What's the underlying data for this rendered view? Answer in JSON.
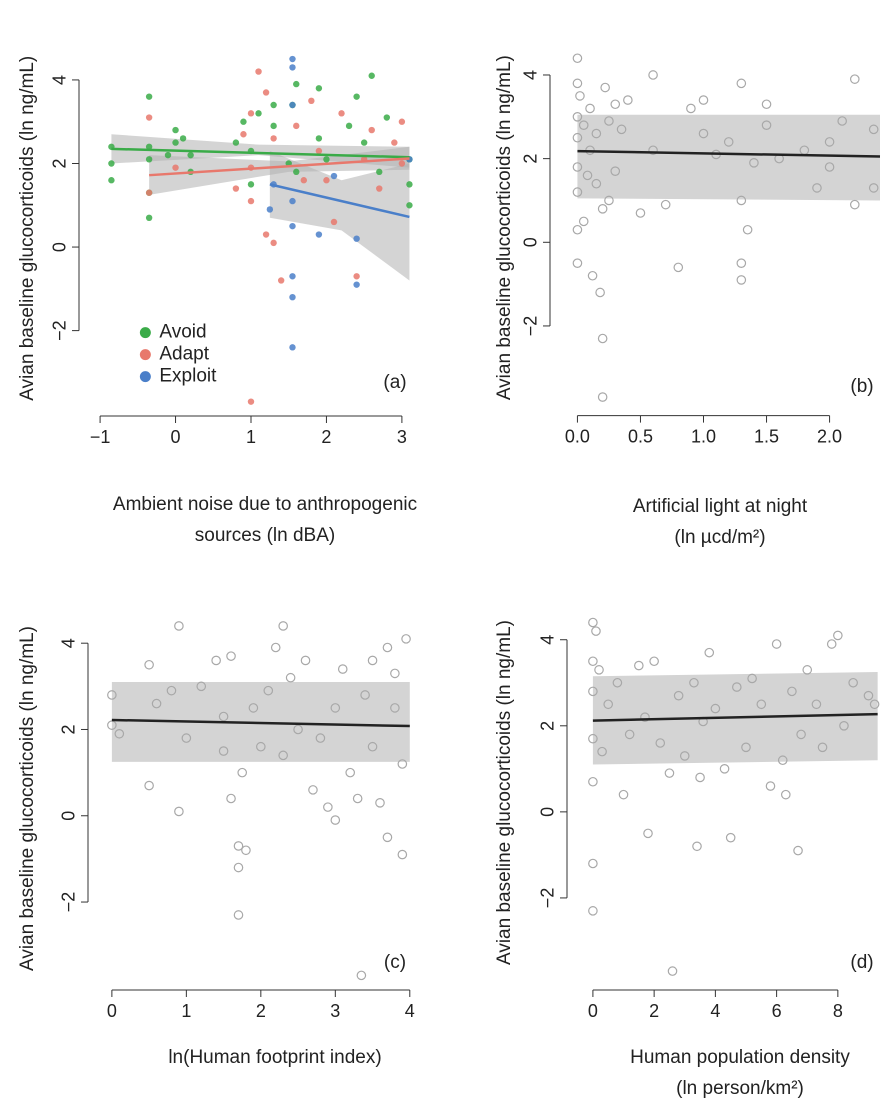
{
  "chart_data": [
    {
      "type": "scatter",
      "panel_label": "(a)",
      "ylabel": "Avian baseline glucocorticoids (ln ng/mL)",
      "xlabel": [
        "Ambient noise due to anthropogenic",
        "sources (ln dBA)"
      ],
      "xlim": [
        -1.2,
        3.24
      ],
      "ylim": [
        -3.9,
        4.8
      ],
      "xticks": [
        {
          "value": -1,
          "label": "−1"
        },
        0,
        1,
        2,
        3
      ],
      "yticks": [
        {
          "value": -2,
          "label": "−2"
        },
        0,
        2,
        4
      ],
      "legend": "bottom-left",
      "marker": "filled",
      "band_color": "#b0b0b0",
      "series": [
        {
          "name": "Avoid",
          "color": "#3aab48",
          "x": [
            -0.85,
            -0.85,
            -0.85,
            -0.35,
            -0.35,
            -0.35,
            -0.35,
            -0.35,
            -0.1,
            0,
            0,
            0.1,
            0.2,
            0.2,
            0.8,
            0.9,
            1,
            1,
            1.1,
            1.3,
            1.3,
            1.5,
            1.55,
            1.6,
            1.6,
            1.9,
            1.9,
            2.0,
            2.3,
            2.4,
            2.5,
            2.6,
            2.7,
            2.8,
            3.1,
            3.1,
            3.1
          ],
          "values": [
            1.6,
            2.0,
            2.4,
            3.6,
            2.4,
            2.1,
            1.3,
            0.7,
            2.2,
            2.5,
            2.8,
            2.6,
            2.2,
            1.8,
            2.5,
            3.0,
            2.3,
            1.5,
            3.2,
            3.4,
            2.9,
            2.0,
            3.4,
            3.9,
            1.8,
            2.6,
            3.8,
            2.1,
            2.9,
            3.6,
            2.5,
            4.1,
            1.8,
            3.1,
            2.1,
            1.5,
            1.0
          ],
          "fit": {
            "x": [
              -0.85,
              3.1
            ],
            "values": [
              2.35,
              2.15
            ]
          },
          "band": {
            "x": [
              -0.85,
              1.1,
              3.1
            ],
            "upper": [
              2.7,
              2.45,
              2.4
            ],
            "lower": [
              2.0,
              2.2,
              1.9
            ]
          }
        },
        {
          "name": "Adapt",
          "color": "#e8786c",
          "x": [
            -0.35,
            -0.35,
            0,
            0.8,
            0.9,
            1.0,
            1.0,
            1.0,
            1.1,
            1.2,
            1.2,
            1.3,
            1.3,
            1.4,
            1.6,
            1.7,
            1.8,
            1.9,
            2.0,
            2.1,
            2.2,
            2.4,
            2.5,
            2.6,
            2.7,
            2.9,
            3.0,
            3.0,
            1.0
          ],
          "values": [
            3.1,
            1.3,
            1.9,
            1.4,
            2.7,
            3.2,
            1.9,
            1.1,
            4.2,
            3.7,
            0.3,
            2.6,
            0.1,
            -0.8,
            2.9,
            1.6,
            3.5,
            2.3,
            1.6,
            0.6,
            3.2,
            -0.7,
            2.1,
            2.8,
            1.4,
            2.5,
            3.0,
            2.0,
            -3.7
          ],
          "fit": {
            "x": [
              -0.35,
              3.1
            ],
            "values": [
              1.72,
              2.12
            ]
          },
          "band": {
            "x": [
              -0.35,
              1.5,
              3.1
            ],
            "upper": [
              2.2,
              2.05,
              2.4
            ],
            "lower": [
              1.25,
              1.8,
              1.85
            ]
          }
        },
        {
          "name": "Exploit",
          "color": "#4a7fc9",
          "x": [
            1.25,
            1.3,
            1.55,
            1.55,
            1.55,
            1.55,
            1.55,
            1.55,
            1.55,
            1.55,
            1.9,
            2.1,
            2.4,
            2.4,
            3.1
          ],
          "values": [
            0.9,
            1.5,
            4.5,
            4.3,
            3.4,
            -0.7,
            -1.2,
            -2.4,
            1.1,
            0.5,
            0.3,
            1.7,
            -0.9,
            0.2,
            2.1
          ],
          "fit": {
            "x": [
              1.25,
              3.1
            ],
            "values": [
              1.5,
              0.72
            ]
          },
          "band": {
            "x": [
              1.25,
              2.2,
              3.1
            ],
            "upper": [
              2.3,
              1.6,
              2.0
            ],
            "lower": [
              0.7,
              0.4,
              -0.8
            ]
          }
        }
      ]
    },
    {
      "type": "scatter",
      "panel_label": "(b)",
      "ylabel": "Avian baseline glucocorticoids (ln ng/mL)",
      "xlabel": [
        "Artificial light at night",
        "(ln µcd/m²)"
      ],
      "xlim": [
        -0.17,
        2.4
      ],
      "ylim": [
        -4.0,
        4.7
      ],
      "xticks": [
        {
          "value": 0,
          "label": "0.0"
        },
        0.5,
        {
          "value": 1,
          "label": "1.0"
        },
        1.5,
        {
          "value": 2,
          "label": "2.0"
        }
      ],
      "yticks": [
        {
          "value": -2,
          "label": "−2"
        },
        0,
        2,
        4
      ],
      "marker": "open",
      "band_color": "#d4d4d4",
      "series": [
        {
          "color": "#a8a8a8",
          "x": [
            0,
            0,
            0,
            0,
            0,
            0,
            0,
            0,
            0.02,
            0.05,
            0.05,
            0.08,
            0.1,
            0.1,
            0.12,
            0.15,
            0.15,
            0.18,
            0.2,
            0.2,
            0.2,
            0.22,
            0.25,
            0.25,
            0.3,
            0.3,
            0.35,
            0.4,
            0.5,
            0.6,
            0.6,
            0.7,
            0.8,
            0.9,
            1.0,
            1.0,
            1.1,
            1.2,
            1.3,
            1.3,
            1.3,
            1.3,
            1.35,
            1.4,
            1.5,
            1.5,
            1.6,
            1.8,
            1.9,
            2.0,
            2.0,
            2.1,
            2.2,
            2.2,
            2.35,
            2.35
          ],
          "values": [
            4.4,
            3.8,
            3.0,
            2.5,
            1.8,
            1.2,
            0.3,
            -0.5,
            3.5,
            2.8,
            0.5,
            1.6,
            3.2,
            2.2,
            -0.8,
            1.4,
            2.6,
            -1.2,
            -2.3,
            -3.7,
            0.8,
            3.7,
            1.0,
            2.9,
            3.3,
            1.7,
            2.7,
            3.4,
            0.7,
            4.0,
            2.2,
            0.9,
            -0.6,
            3.2,
            2.6,
            3.4,
            2.1,
            2.4,
            3.8,
            1.0,
            -0.5,
            -0.9,
            0.3,
            1.9,
            2.8,
            3.3,
            2.0,
            2.2,
            1.3,
            2.4,
            1.8,
            2.9,
            3.9,
            0.9,
            2.7,
            1.3
          ],
          "fit_color": "#222222",
          "fit": {
            "x": [
              0,
              2.4
            ],
            "values": [
              2.18,
              2.05
            ]
          },
          "band": {
            "x": [
              0,
              2.4
            ],
            "upper": [
              3.05,
              3.05
            ],
            "lower": [
              1.05,
              1.0
            ]
          }
        }
      ]
    },
    {
      "type": "scatter",
      "panel_label": "(c)",
      "ylabel": "Avian baseline glucocorticoids (ln ng/mL)",
      "xlabel": [
        "ln(Human footprint index)"
      ],
      "xlim": [
        -0.24,
        4.07
      ],
      "ylim": [
        -3.9,
        4.7
      ],
      "xticks": [
        0,
        1,
        2,
        3,
        4
      ],
      "yticks": [
        {
          "value": -2,
          "label": "−2"
        },
        0,
        2,
        4
      ],
      "marker": "open",
      "band_color": "#d4d4d4",
      "series": [
        {
          "color": "#a8a8a8",
          "x": [
            0,
            0,
            0.1,
            0.5,
            0.5,
            0.6,
            0.8,
            0.9,
            0.9,
            1.0,
            1.2,
            1.4,
            1.5,
            1.5,
            1.6,
            1.6,
            1.7,
            1.7,
            1.7,
            1.75,
            1.8,
            1.9,
            2.0,
            2.1,
            2.2,
            2.3,
            2.3,
            2.4,
            2.5,
            2.6,
            2.7,
            2.8,
            2.9,
            3.0,
            3.0,
            3.1,
            3.2,
            3.3,
            3.35,
            3.4,
            3.5,
            3.5,
            3.6,
            3.7,
            3.7,
            3.8,
            3.8,
            3.9,
            3.9,
            3.95
          ],
          "values": [
            2.8,
            2.1,
            1.9,
            3.5,
            0.7,
            2.6,
            2.9,
            4.4,
            0.1,
            1.8,
            3.0,
            3.6,
            2.3,
            1.5,
            3.7,
            0.4,
            -0.7,
            -1.2,
            -2.3,
            1.0,
            -0.8,
            2.5,
            1.6,
            2.9,
            3.9,
            4.4,
            1.4,
            3.2,
            2.0,
            3.6,
            0.6,
            1.8,
            0.2,
            2.5,
            -0.1,
            3.4,
            1.0,
            0.4,
            -3.7,
            2.8,
            1.6,
            3.6,
            0.3,
            3.9,
            -0.5,
            2.5,
            3.3,
            -0.9,
            1.2,
            4.1
          ],
          "fit_color": "#222222",
          "fit": {
            "x": [
              0,
              4
            ],
            "values": [
              2.22,
              2.08
            ]
          },
          "band": {
            "x": [
              0,
              4
            ],
            "upper": [
              3.1,
              3.1
            ],
            "lower": [
              1.25,
              1.25
            ]
          }
        }
      ]
    },
    {
      "type": "scatter",
      "panel_label": "(d)",
      "ylabel": "Avian baseline glucocorticoids (ln ng/mL)",
      "xlabel": [
        "Human population density",
        "(ln person/km²)"
      ],
      "xlim": [
        -0.65,
        9.54
      ],
      "ylim": [
        -4.0,
        4.9
      ],
      "xticks": [
        0,
        2,
        4,
        6,
        8
      ],
      "yticks": [
        {
          "value": -2,
          "label": "−2"
        },
        0,
        2,
        4
      ],
      "marker": "open",
      "band_color": "#d4d4d4",
      "series": [
        {
          "color": "#a8a8a8",
          "x": [
            0,
            0,
            0,
            0,
            0,
            0,
            0,
            0.1,
            0.2,
            0.3,
            0.5,
            0.8,
            1.0,
            1.2,
            1.5,
            1.7,
            1.8,
            2.0,
            2.2,
            2.5,
            2.6,
            2.8,
            3.0,
            3.3,
            3.4,
            3.5,
            3.6,
            3.8,
            4.0,
            4.3,
            4.5,
            4.7,
            5.0,
            5.2,
            5.5,
            5.8,
            6.0,
            6.2,
            6.3,
            6.5,
            6.7,
            6.8,
            7.0,
            7.3,
            7.5,
            7.8,
            8.0,
            8.2,
            8.5,
            9.0,
            9.2
          ],
          "values": [
            4.4,
            3.5,
            2.8,
            1.7,
            0.7,
            -1.2,
            -2.3,
            4.2,
            3.3,
            1.4,
            2.5,
            3.0,
            0.4,
            1.8,
            3.4,
            2.2,
            -0.5,
            3.5,
            1.6,
            0.9,
            -3.7,
            2.7,
            1.3,
            3.0,
            -0.8,
            0.8,
            2.1,
            3.7,
            2.4,
            1.0,
            -0.6,
            2.9,
            1.5,
            3.1,
            2.5,
            0.6,
            3.9,
            1.2,
            0.4,
            2.8,
            -0.9,
            1.8,
            3.3,
            2.5,
            1.5,
            3.9,
            4.1,
            2.0,
            3.0,
            2.7,
            2.5
          ],
          "fit_color": "#222222",
          "fit": {
            "x": [
              0,
              9.3
            ],
            "values": [
              2.12,
              2.27
            ]
          },
          "band": {
            "x": [
              0,
              9.3
            ],
            "upper": [
              3.15,
              3.25
            ],
            "lower": [
              1.1,
              1.2
            ]
          }
        }
      ]
    }
  ]
}
